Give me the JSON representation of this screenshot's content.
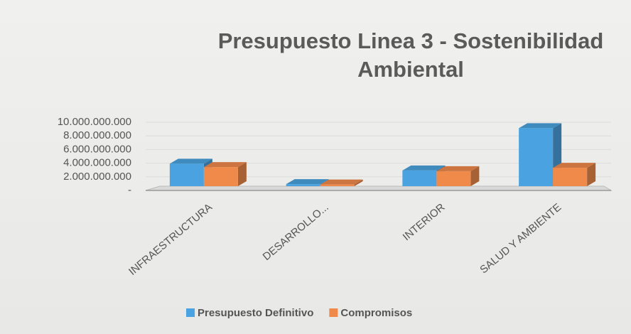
{
  "chart_data": {
    "type": "bar3d",
    "title": "Presupuesto Linea 3 - Sostenibilidad Ambiental",
    "categories": [
      "INFRAESTRUCTURA",
      "DESARROLLO...",
      "INTERIOR",
      "SALUD Y AMBIENTE"
    ],
    "series": [
      {
        "name": "Presupuesto Definitivo",
        "color": "#4aa3e0",
        "values": [
          3300000000,
          300000000,
          2300000000,
          8500000000
        ]
      },
      {
        "name": "Compromisos",
        "color": "#f08a4b",
        "values": [
          2800000000,
          250000000,
          2200000000,
          2700000000
        ]
      }
    ],
    "ylim": [
      0,
      10000000000
    ],
    "yticks": [
      {
        "value": 0,
        "label": "-"
      },
      {
        "value": 2000000000,
        "label": "2.000.000.000"
      },
      {
        "value": 4000000000,
        "label": "4.000.000.000"
      },
      {
        "value": 6000000000,
        "label": "6.000.000.000"
      },
      {
        "value": 8000000000,
        "label": "8.000.000.000"
      },
      {
        "value": 10000000000,
        "label": "10.000.000.000"
      }
    ],
    "legend": "bottom"
  }
}
